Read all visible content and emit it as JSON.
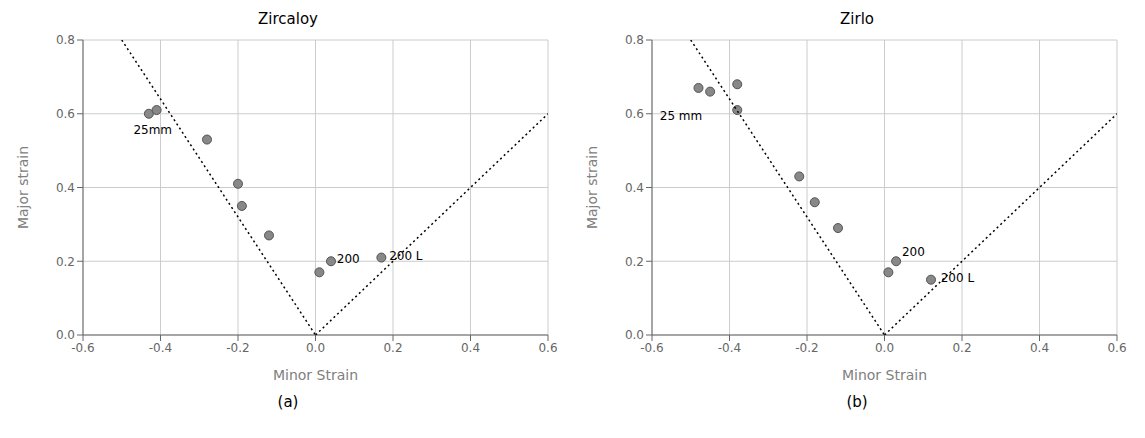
{
  "chart_data": [
    {
      "type": "scatter",
      "title": "Zircaloy",
      "subtitle": "(a)",
      "x_label": "Minor Strain",
      "y_label": "Major strain",
      "xlim": [
        -0.6,
        0.6
      ],
      "xticks": [
        -0.6,
        -0.4,
        -0.2,
        {
          "value": 0.0,
          "label": "0.0"
        },
        0.2,
        0.4,
        0.6
      ],
      "ylim": [
        0.0,
        0.8
      ],
      "yticks": [
        {
          "value": 0.0,
          "label": "0.0"
        },
        0.2,
        0.4,
        0.6,
        0.8
      ],
      "grid": true,
      "series": [
        {
          "type": "scatter",
          "color": "#888888",
          "x": [
            -0.43,
            -0.41,
            -0.28,
            -0.2,
            -0.19,
            -0.12,
            0.01,
            0.04,
            0.17
          ],
          "values": [
            0.6,
            0.61,
            0.53,
            0.41,
            0.35,
            0.27,
            0.17,
            0.2,
            0.21
          ]
        },
        {
          "type": "line",
          "line_style": "dotted",
          "color": "black",
          "x": [
            -0.5,
            0.0
          ],
          "values": [
            0.8,
            0.0
          ]
        },
        {
          "type": "line",
          "line_style": "dotted",
          "color": "black",
          "x": [
            0.0,
            0.6
          ],
          "values": [
            0.0,
            0.6
          ]
        }
      ],
      "annotations": [
        {
          "text": "25mm",
          "x": -0.47,
          "y": 0.555
        },
        {
          "text": "200",
          "x": 0.055,
          "y": 0.205
        },
        {
          "text": "200 L",
          "x": 0.19,
          "y": 0.215
        }
      ]
    },
    {
      "type": "scatter",
      "title": "Zirlo",
      "subtitle": "(b)",
      "x_label": "Minor Strain",
      "y_label": "Major strain",
      "xlim": [
        -0.6,
        0.6
      ],
      "xticks": [
        -0.6,
        -0.4,
        -0.2,
        {
          "value": 0.0,
          "label": "0.0"
        },
        0.2,
        0.4,
        0.6
      ],
      "ylim": [
        0.0,
        0.8
      ],
      "yticks": [
        {
          "value": 0.0,
          "label": "0.0"
        },
        0.2,
        0.4,
        0.6,
        0.8
      ],
      "grid": true,
      "series": [
        {
          "type": "scatter",
          "color": "#888888",
          "x": [
            -0.48,
            -0.45,
            -0.38,
            -0.38,
            -0.22,
            -0.18,
            -0.12,
            0.01,
            0.03,
            0.12
          ],
          "values": [
            0.67,
            0.66,
            0.68,
            0.61,
            0.43,
            0.36,
            0.29,
            0.17,
            0.2,
            0.15
          ]
        },
        {
          "type": "line",
          "line_style": "dotted",
          "color": "black",
          "x": [
            -0.5,
            0.0
          ],
          "values": [
            0.8,
            0.0
          ]
        },
        {
          "type": "line",
          "line_style": "dotted",
          "color": "black",
          "x": [
            0.0,
            0.6
          ],
          "values": [
            0.0,
            0.6
          ]
        }
      ],
      "annotations": [
        {
          "text": "25 mm",
          "x": -0.58,
          "y": 0.595
        },
        {
          "text": "200",
          "x": 0.045,
          "y": 0.225
        },
        {
          "text": "200 L",
          "x": 0.145,
          "y": 0.155
        }
      ]
    }
  ]
}
